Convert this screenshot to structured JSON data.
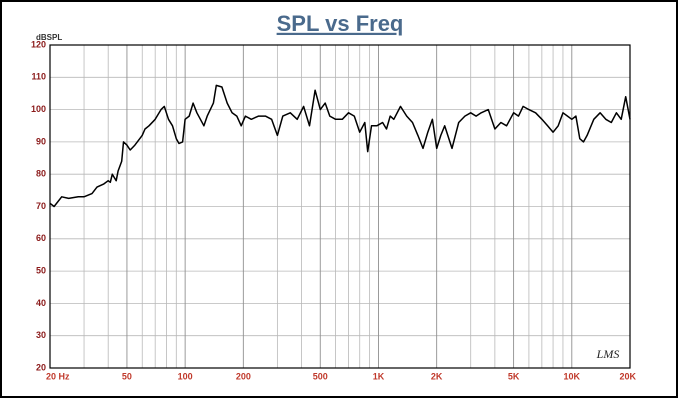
{
  "chart_data": {
    "type": "line",
    "title": "SPL vs Freq",
    "y_label": "dBSPL",
    "annotation": "LMS",
    "log_x": true,
    "grid": true,
    "xlim": [
      20,
      20000
    ],
    "ylim": [
      20,
      120
    ],
    "yticks": [
      20,
      30,
      40,
      50,
      60,
      70,
      80,
      90,
      100,
      110,
      120
    ],
    "xticks": [
      {
        "value": 20,
        "label": "20  Hz"
      },
      50,
      100,
      200,
      500,
      {
        "value": 1000,
        "label": "1K"
      },
      {
        "value": 2000,
        "label": "2K"
      },
      {
        "value": 5000,
        "label": "5K"
      },
      {
        "value": 10000,
        "label": "10K"
      },
      {
        "value": 20000,
        "label": "20K"
      }
    ],
    "xminorticks": [
      30,
      40,
      60,
      70,
      80,
      90,
      300,
      400,
      600,
      700,
      800,
      900,
      3000,
      4000,
      6000,
      7000,
      8000,
      9000
    ],
    "series": [
      {
        "name": "SPL",
        "color": "#000000",
        "x": [
          20,
          21,
          23,
          25,
          28,
          30,
          33,
          35,
          38,
          40,
          41,
          42,
          44,
          45,
          47,
          48,
          50,
          52,
          55,
          60,
          62,
          65,
          70,
          75,
          78,
          82,
          86,
          90,
          93,
          97,
          100,
          105,
          110,
          115,
          120,
          125,
          130,
          140,
          145,
          155,
          165,
          175,
          185,
          195,
          205,
          220,
          240,
          260,
          280,
          300,
          320,
          350,
          380,
          410,
          440,
          470,
          500,
          530,
          560,
          600,
          650,
          700,
          750,
          800,
          850,
          880,
          920,
          980,
          1050,
          1100,
          1150,
          1200,
          1300,
          1400,
          1500,
          1600,
          1700,
          1800,
          1900,
          2000,
          2100,
          2200,
          2400,
          2600,
          2800,
          3000,
          3200,
          3400,
          3700,
          4000,
          4300,
          4600,
          5000,
          5300,
          5600,
          6000,
          6500,
          7000,
          7500,
          8000,
          8500,
          9000,
          9500,
          10000,
          10500,
          11000,
          11500,
          12000,
          13000,
          14000,
          15000,
          16000,
          17000,
          18000,
          19000,
          20000
        ],
        "values": [
          71,
          70,
          73,
          72.5,
          73,
          73,
          74,
          76,
          77,
          78,
          77.5,
          80,
          78,
          81,
          84,
          90,
          89,
          87.5,
          89,
          92,
          94,
          95,
          97,
          100,
          101,
          97,
          95,
          91,
          89.5,
          90,
          97,
          98,
          102,
          99,
          97,
          95,
          98,
          102,
          107.5,
          107,
          102,
          99,
          98,
          95,
          98,
          97,
          98,
          98,
          97,
          92,
          98,
          99,
          97,
          101,
          95,
          106,
          100,
          102,
          98,
          97,
          97,
          99,
          98,
          93,
          96,
          87,
          95,
          95,
          96,
          94,
          98,
          97,
          101,
          98,
          96,
          92,
          88,
          93,
          97,
          88,
          92,
          95,
          88,
          96,
          98,
          99,
          98,
          99,
          100,
          94,
          96,
          95,
          99,
          98,
          101,
          100,
          99,
          97,
          95,
          93,
          95,
          99,
          98,
          97,
          98,
          91,
          90,
          92,
          97,
          99,
          97,
          96,
          99,
          97,
          104,
          97
        ]
      }
    ]
  }
}
